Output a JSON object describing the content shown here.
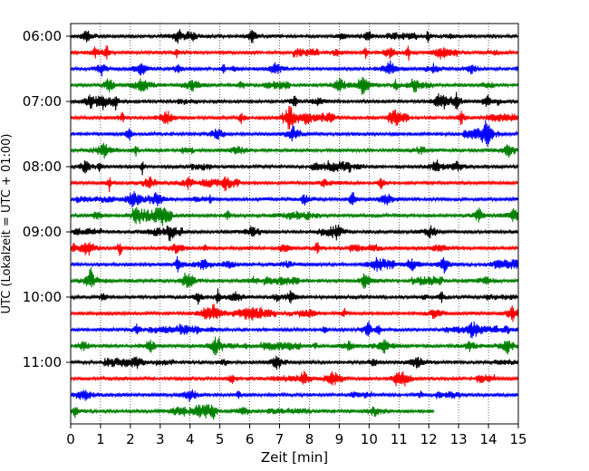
{
  "chart_data": {
    "type": "line",
    "subtype": "helicorder",
    "xlabel": "Zeit  [min]",
    "ylabel": "UTC (Lokalzeit = UTC + 01:00)",
    "xlim": [
      0,
      15
    ],
    "x_ticks": [
      0,
      1,
      2,
      3,
      4,
      5,
      6,
      7,
      8,
      9,
      10,
      11,
      12,
      13,
      14,
      15
    ],
    "x_tick_labels": [
      "0",
      "1",
      "2",
      "3",
      "4",
      "5",
      "6",
      "7",
      "8",
      "9",
      "10",
      "11",
      "12",
      "13",
      "14",
      "15"
    ],
    "y_tick_labels": [
      "06:00",
      "07:00",
      "08:00",
      "09:00",
      "10:00",
      "11:00"
    ],
    "y_tick_rows": [
      0,
      4,
      8,
      12,
      16,
      20
    ],
    "trace_minutes": 15,
    "grid": "vertical dotted lines at each minute",
    "color_cycle": [
      "#000000",
      "#ff0000",
      "#0000ff",
      "#008000"
    ],
    "traces": [
      {
        "start": "06:00",
        "end_min": 15
      },
      {
        "start": "06:15",
        "end_min": 15
      },
      {
        "start": "06:30",
        "end_min": 15
      },
      {
        "start": "06:45",
        "end_min": 15
      },
      {
        "start": "07:00",
        "end_min": 15
      },
      {
        "start": "07:15",
        "end_min": 15
      },
      {
        "start": "07:30",
        "end_min": 15
      },
      {
        "start": "07:45",
        "end_min": 15
      },
      {
        "start": "08:00",
        "end_min": 15
      },
      {
        "start": "08:15",
        "end_min": 15
      },
      {
        "start": "08:30",
        "end_min": 15
      },
      {
        "start": "08:45",
        "end_min": 15
      },
      {
        "start": "09:00",
        "end_min": 15
      },
      {
        "start": "09:15",
        "end_min": 15
      },
      {
        "start": "09:30",
        "end_min": 15
      },
      {
        "start": "09:45",
        "end_min": 15
      },
      {
        "start": "10:00",
        "end_min": 15
      },
      {
        "start": "10:15",
        "end_min": 15
      },
      {
        "start": "10:30",
        "end_min": 15
      },
      {
        "start": "10:45",
        "end_min": 15
      },
      {
        "start": "11:00",
        "end_min": 15
      },
      {
        "start": "11:15",
        "end_min": 15
      },
      {
        "start": "11:30",
        "end_min": 15
      },
      {
        "start": "11:45",
        "end_min": 12.2
      }
    ]
  }
}
